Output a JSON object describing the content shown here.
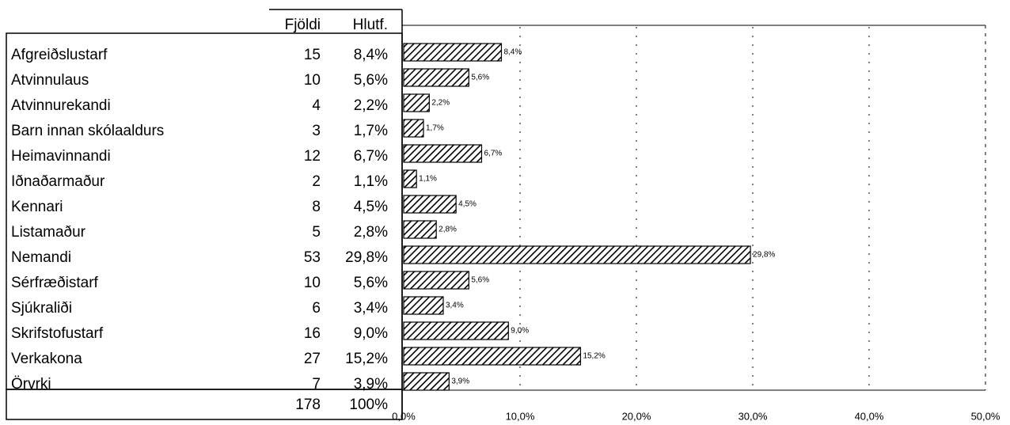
{
  "chart_data": {
    "type": "hbar",
    "categories": [
      "Afgreiðslustarf",
      "Atvinnulaus",
      "Atvinnurekandi",
      "Barn innan skólaaldurs",
      "Heimavinnandi",
      "Iðnaðarmaður",
      "Kennari",
      "Listamaður",
      "Nemandi",
      "Sérfræðistarf",
      "Sjúkraliði",
      "Skrifstofustarf",
      "Verkakona",
      "Örvrki"
    ],
    "values": [
      8.4,
      5.6,
      2.2,
      1.7,
      6.7,
      1.1,
      4.5,
      2.8,
      29.8,
      5.6,
      3.4,
      9.0,
      15.2,
      3.9
    ],
    "value_labels": [
      "8,4%",
      "5,6%",
      "2,2%",
      "1,7%",
      "6,7%",
      "1,1%",
      "4,5%",
      "2,8%",
      "29,8%",
      "5,6%",
      "3,4%",
      "9,0%",
      "15,2%",
      "3,9%"
    ],
    "xlim": [
      0,
      50
    ],
    "xticks": [
      {
        "value": 0,
        "label": "0,0%"
      },
      {
        "value": 10,
        "label": "10,0%"
      },
      {
        "value": 20,
        "label": "20,0%"
      },
      {
        "value": 30,
        "label": "30,0%"
      },
      {
        "value": 40,
        "label": "40,0%"
      },
      {
        "value": 50,
        "label": "50,0%"
      }
    ],
    "grid": true,
    "color": "#000000"
  },
  "table": {
    "headers": [
      "Fjöldi",
      "Hlutf."
    ],
    "counts": [
      15,
      10,
      4,
      3,
      12,
      2,
      8,
      5,
      53,
      10,
      6,
      16,
      27,
      7
    ],
    "total_count": 178,
    "total_percent": "100%"
  }
}
